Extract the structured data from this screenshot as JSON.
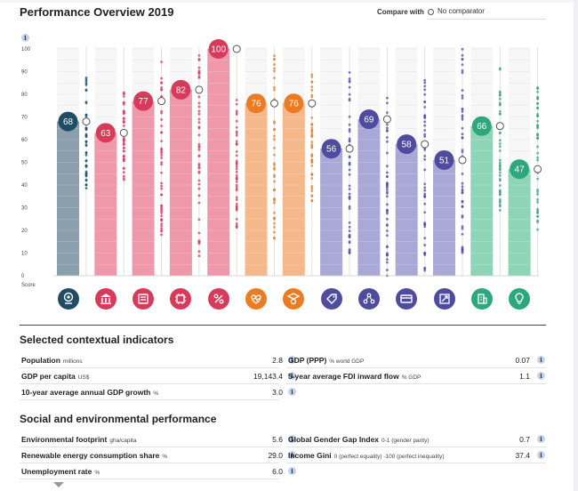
{
  "header": {
    "title": "Performance Overview 2019",
    "compare_label": "Compare with",
    "compare_value": "No comparator"
  },
  "chart_data": {
    "type": "bar",
    "ylim": [
      0,
      100
    ],
    "yticks": [
      "0",
      "10",
      "20",
      "30",
      "40",
      "50",
      "60",
      "70",
      "80",
      "90",
      "100"
    ],
    "ylabel": "Score",
    "grid": true,
    "legend": "none",
    "categories": [
      {
        "icon": "location-pin-icon",
        "color": "#1f4d66"
      },
      {
        "icon": "bank-building-icon",
        "color": "#d83a5a"
      },
      {
        "icon": "cash-register-icon",
        "color": "#d83a5a"
      },
      {
        "icon": "chip-icon",
        "color": "#d83a5a"
      },
      {
        "icon": "percent-icon",
        "color": "#d83a5a"
      },
      {
        "icon": "health-heart-icon",
        "color": "#ec7c24"
      },
      {
        "icon": "graduate-icon",
        "color": "#ec7c24"
      },
      {
        "icon": "tag-icon",
        "color": "#4f4ca0"
      },
      {
        "icon": "people-network-icon",
        "color": "#4f4ca0"
      },
      {
        "icon": "payment-card-icon",
        "color": "#4f4ca0"
      },
      {
        "icon": "scale-expand-icon",
        "color": "#4f4ca0"
      },
      {
        "icon": "green-building-icon",
        "color": "#2fa77e"
      },
      {
        "icon": "lightbulb-icon",
        "color": "#2fa77e"
      }
    ],
    "values": [
      68,
      63,
      77,
      82,
      100,
      76,
      76,
      56,
      69,
      58,
      51,
      66,
      47
    ],
    "bar_colors": [
      "#8c9fac",
      "#ee98aa",
      "#ee98aa",
      "#ee98aa",
      "#ee98aa",
      "#f5b88a",
      "#f5b88a",
      "#a9a8d6",
      "#a9a8d6",
      "#a9a8d6",
      "#a9a8d6",
      "#8ed4b6",
      "#8ed4b6"
    ],
    "bubble_colors": [
      "#1f4d66",
      "#d83a5a",
      "#d83a5a",
      "#d83a5a",
      "#d83a5a",
      "#ec7c24",
      "#ec7c24",
      "#4f4ca0",
      "#4f4ca0",
      "#4f4ca0",
      "#4f4ca0",
      "#2fa77e",
      "#2fa77e"
    ],
    "peer_ranges": [
      [
        36,
        88
      ],
      [
        42,
        82
      ],
      [
        18,
        95
      ],
      [
        8,
        98
      ],
      [
        20,
        78
      ],
      [
        14,
        100
      ],
      [
        30,
        90
      ],
      [
        10,
        90
      ],
      [
        0,
        88
      ],
      [
        2,
        88
      ],
      [
        10,
        100
      ],
      [
        26,
        92
      ],
      [
        20,
        84
      ]
    ]
  },
  "contextual": {
    "title": "Selected contextual indicators",
    "rows": [
      {
        "label": "Population",
        "unit": "millions",
        "value": "2.8"
      },
      {
        "label": "GDP (PPP)",
        "unit": "% world GDP",
        "value": "0.07"
      },
      {
        "label": "GDP per capita",
        "unit": "US$",
        "value": "19,143.4"
      },
      {
        "label": "5-year average FDI inward flow",
        "unit": "% GDP",
        "value": "1.1"
      },
      {
        "label": "10-year average annual GDP growth",
        "unit": "%",
        "value": "3.0"
      }
    ]
  },
  "social": {
    "title": "Social and environmental performance",
    "rows": [
      {
        "label": "Environmental footprint",
        "unit": "gha/capita",
        "value": "5.6"
      },
      {
        "label": "Global Gender Gap Index",
        "unit": "0-1 (gender parity)",
        "value": "0.7"
      },
      {
        "label": "Renewable energy consumption share",
        "unit": "%",
        "value": "29.0"
      },
      {
        "label": "Income Gini",
        "unit": "0 (perfect equality) -100 (perfect inequality)",
        "value": "37.4"
      },
      {
        "label": "Unemployment rate",
        "unit": "%",
        "value": "6.0"
      }
    ]
  }
}
